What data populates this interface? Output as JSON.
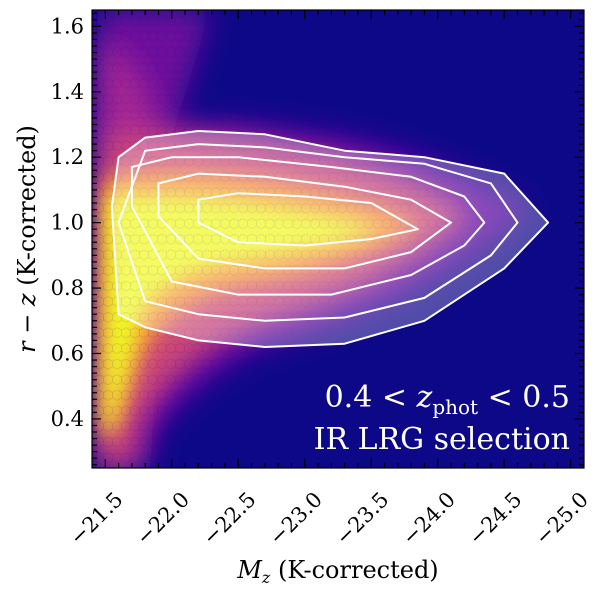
{
  "chart_data": {
    "type": "heatmap",
    "xlabel_main": "M",
    "xlabel_sub": "z",
    "xlabel_rest": " (K-corrected)",
    "ylabel_main": "r − z",
    "ylabel_rest": " (K-corrected)",
    "xlim": [
      -21.4,
      -25.1
    ],
    "ylim": [
      0.25,
      1.65
    ],
    "x_ticks": [
      -21.5,
      -22.0,
      -22.5,
      -23.0,
      -23.5,
      -24.0,
      -24.5,
      -25.0
    ],
    "x_tick_labels": [
      "−21.5",
      "−22.0",
      "−22.5",
      "−23.0",
      "−23.5",
      "−24.0",
      "−24.5",
      "−25.0"
    ],
    "y_ticks": [
      0.4,
      0.6,
      0.8,
      1.0,
      1.2,
      1.4,
      1.6
    ],
    "y_tick_labels": [
      "0.4",
      "0.6",
      "0.8",
      "1.0",
      "1.2",
      "1.4",
      "1.6"
    ],
    "colormap": [
      "#0d0887",
      "#6a00a8",
      "#b12a90",
      "#e16462",
      "#fca636",
      "#f0f921"
    ],
    "background_color": "#0d0887",
    "contour_color": "#ffffff",
    "contours": [
      {
        "level": 1,
        "x": [
          -21.55,
          -21.6,
          -21.8,
          -22.2,
          -22.7,
          -23.3,
          -23.9,
          -24.5,
          -24.83,
          -24.5,
          -23.9,
          -23.3,
          -22.7,
          -22.2,
          -21.8,
          -21.6,
          -21.55
        ],
        "y": [
          1.05,
          0.72,
          0.68,
          0.64,
          0.62,
          0.63,
          0.7,
          0.86,
          1.0,
          1.15,
          1.2,
          1.22,
          1.27,
          1.28,
          1.26,
          1.2,
          1.05
        ]
      },
      {
        "level": 2,
        "x": [
          -21.6,
          -21.8,
          -22.2,
          -22.7,
          -23.3,
          -23.9,
          -24.4,
          -24.6,
          -24.4,
          -23.9,
          -23.3,
          -22.7,
          -22.2,
          -21.8,
          -21.6
        ],
        "y": [
          1.0,
          0.76,
          0.72,
          0.7,
          0.71,
          0.77,
          0.9,
          1.0,
          1.12,
          1.18,
          1.2,
          1.23,
          1.24,
          1.22,
          1.0
        ]
      },
      {
        "level": 3,
        "x": [
          -21.7,
          -22.0,
          -22.5,
          -23.2,
          -23.8,
          -24.2,
          -24.35,
          -24.2,
          -23.8,
          -23.2,
          -22.5,
          -22.0,
          -21.7,
          -21.7
        ],
        "y": [
          1.05,
          0.82,
          0.78,
          0.78,
          0.84,
          0.93,
          1.0,
          1.08,
          1.14,
          1.17,
          1.2,
          1.2,
          1.17,
          1.05
        ]
      },
      {
        "level": 4,
        "x": [
          -21.9,
          -22.2,
          -22.7,
          -23.3,
          -23.8,
          -24.1,
          -23.8,
          -23.3,
          -22.7,
          -22.2,
          -21.9,
          -21.9
        ],
        "y": [
          1.02,
          0.89,
          0.86,
          0.86,
          0.91,
          1.0,
          1.07,
          1.11,
          1.14,
          1.15,
          1.12,
          1.02
        ]
      },
      {
        "level": 5,
        "x": [
          -22.2,
          -22.5,
          -23.0,
          -23.5,
          -23.85,
          -23.5,
          -23.0,
          -22.5,
          -22.2,
          -22.2
        ],
        "y": [
          1.0,
          0.94,
          0.93,
          0.95,
          0.98,
          1.06,
          1.08,
          1.09,
          1.07,
          1.0
        ]
      }
    ],
    "annotation_line1_a": "0.4 < ",
    "annotation_line1_var": "z",
    "annotation_line1_sub": "phot",
    "annotation_line1_b": " < 0.5",
    "annotation_line2": "IR LRG selection",
    "grid": false
  }
}
